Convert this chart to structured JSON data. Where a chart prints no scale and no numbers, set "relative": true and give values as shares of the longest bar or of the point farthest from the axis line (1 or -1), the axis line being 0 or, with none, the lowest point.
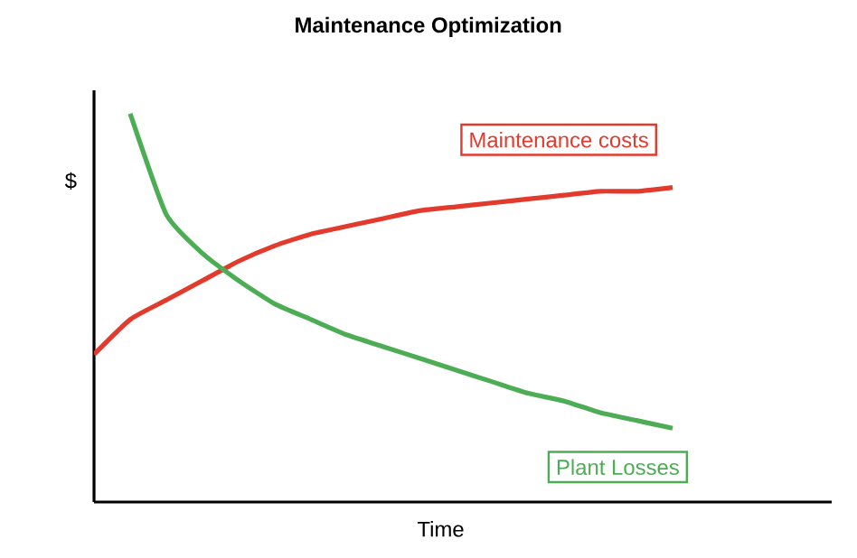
{
  "chart_data": {
    "type": "line",
    "title": "Maintenance Optimization",
    "xlabel": "Time",
    "ylabel": "$",
    "relative": true,
    "legend": false,
    "marker": "none",
    "line_style": "solid",
    "categories": [
      null,
      null,
      null,
      null,
      null,
      null,
      null,
      null,
      null,
      null,
      null,
      null,
      null,
      null,
      null,
      null,
      null
    ],
    "series": [
      {
        "name": "Maintenance costs",
        "color": "#e23a2c",
        "values": [
          0.38,
          0.47,
          0.52,
          0.57,
          0.62,
          0.66,
          0.69,
          0.71,
          0.73,
          0.75,
          0.76,
          0.77,
          0.78,
          0.79,
          0.8,
          0.8,
          0.81
        ]
      },
      {
        "name": "Plant Losses",
        "color": "#4cad55",
        "values": [
          null,
          1.0,
          0.74,
          0.64,
          0.57,
          0.51,
          0.47,
          0.43,
          0.4,
          0.37,
          0.34,
          0.31,
          0.28,
          0.26,
          0.23,
          0.21,
          0.19
        ]
      }
    ]
  }
}
